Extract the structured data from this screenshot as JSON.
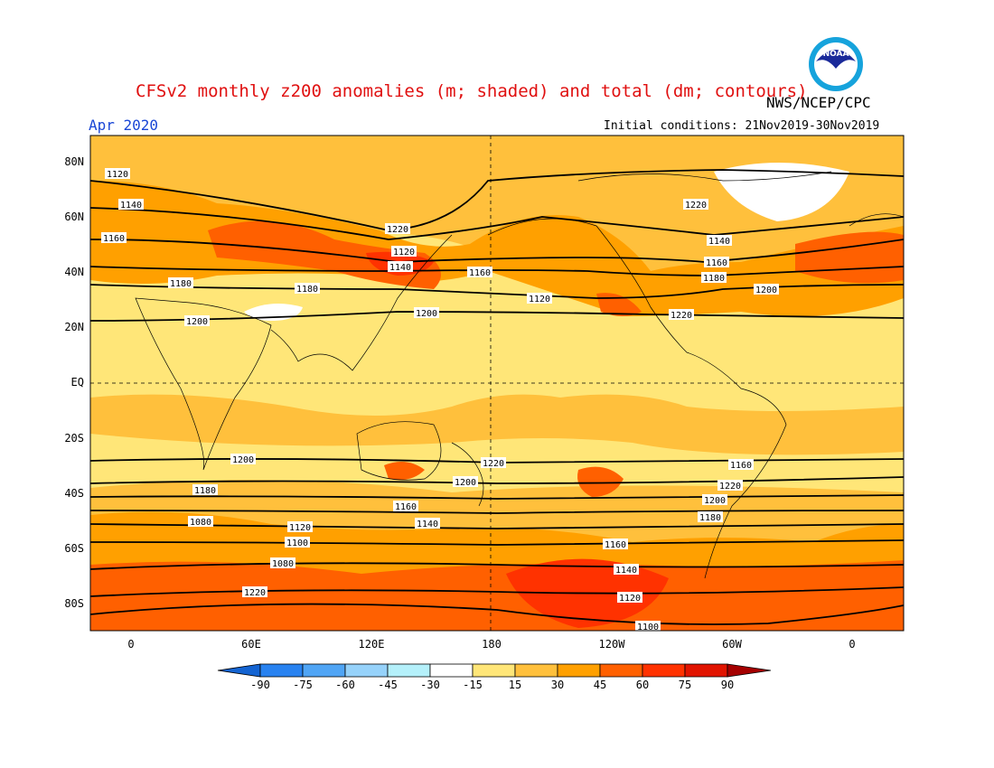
{
  "header": {
    "title": "CFSv2 monthly z200 anomalies (m; shaded) and total (dm; contours)",
    "agency": "NWS/NCEP/CPC",
    "month": "Apr 2020",
    "initial_conditions": "Initial conditions: 21Nov2019-30Nov2019"
  },
  "logo": {
    "icon": "noaa-logo-icon",
    "text": "NOAA"
  },
  "map": {
    "y_axis": [
      "80N",
      "60N",
      "40N",
      "20N",
      "EQ",
      "20S",
      "40S",
      "60S",
      "80S"
    ],
    "x_axis": [
      "0",
      "60E",
      "120E",
      "180",
      "120W",
      "60W",
      "0"
    ],
    "contour_labels": [
      "1120",
      "1140",
      "1160",
      "1180",
      "1200",
      "1220",
      "1120",
      "1140",
      "1160",
      "1180",
      "1200",
      "1220",
      "1140",
      "1160",
      "1180",
      "1200",
      "1220",
      "1120",
      "1220",
      "1200",
      "1160",
      "1140",
      "1120",
      "1100",
      "1080",
      "1220",
      "1200",
      "1180",
      "1160",
      "1220",
      "1200",
      "1180",
      "1160",
      "1140",
      "1120",
      "1100",
      "1080"
    ]
  },
  "colorbar": {
    "labels": [
      "-90",
      "-75",
      "-60",
      "-45",
      "-30",
      "-15",
      "15",
      "30",
      "45",
      "60",
      "75",
      "90"
    ],
    "colors": [
      "#1464d2",
      "#2882f0",
      "#50a5f5",
      "#96d2fa",
      "#b4f0fa",
      "#ffffff",
      "#ffe678",
      "#ffc03c",
      "#ffa000",
      "#ff6000",
      "#ff3200",
      "#e11400",
      "#a50000"
    ]
  }
}
